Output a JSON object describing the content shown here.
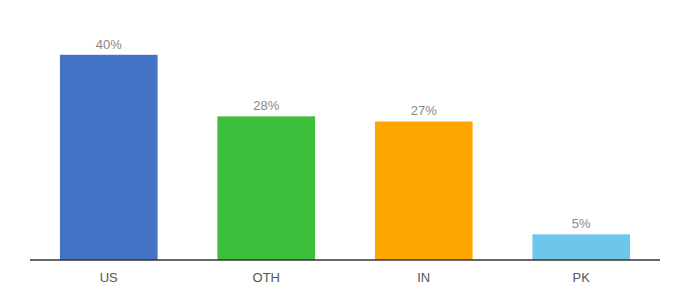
{
  "chart_data": {
    "type": "bar",
    "categories": [
      "US",
      "OTH",
      "IN",
      "PK"
    ],
    "values": [
      40,
      28,
      27,
      5
    ],
    "value_labels": [
      "40%",
      "28%",
      "27%",
      "5%"
    ],
    "colors": [
      "#4472C4",
      "#3DBE3D",
      "#FFA500",
      "#6EC6EA"
    ],
    "ylim": [
      0,
      46
    ],
    "data_labels": true,
    "tick_labels": "x",
    "grid": false
  }
}
